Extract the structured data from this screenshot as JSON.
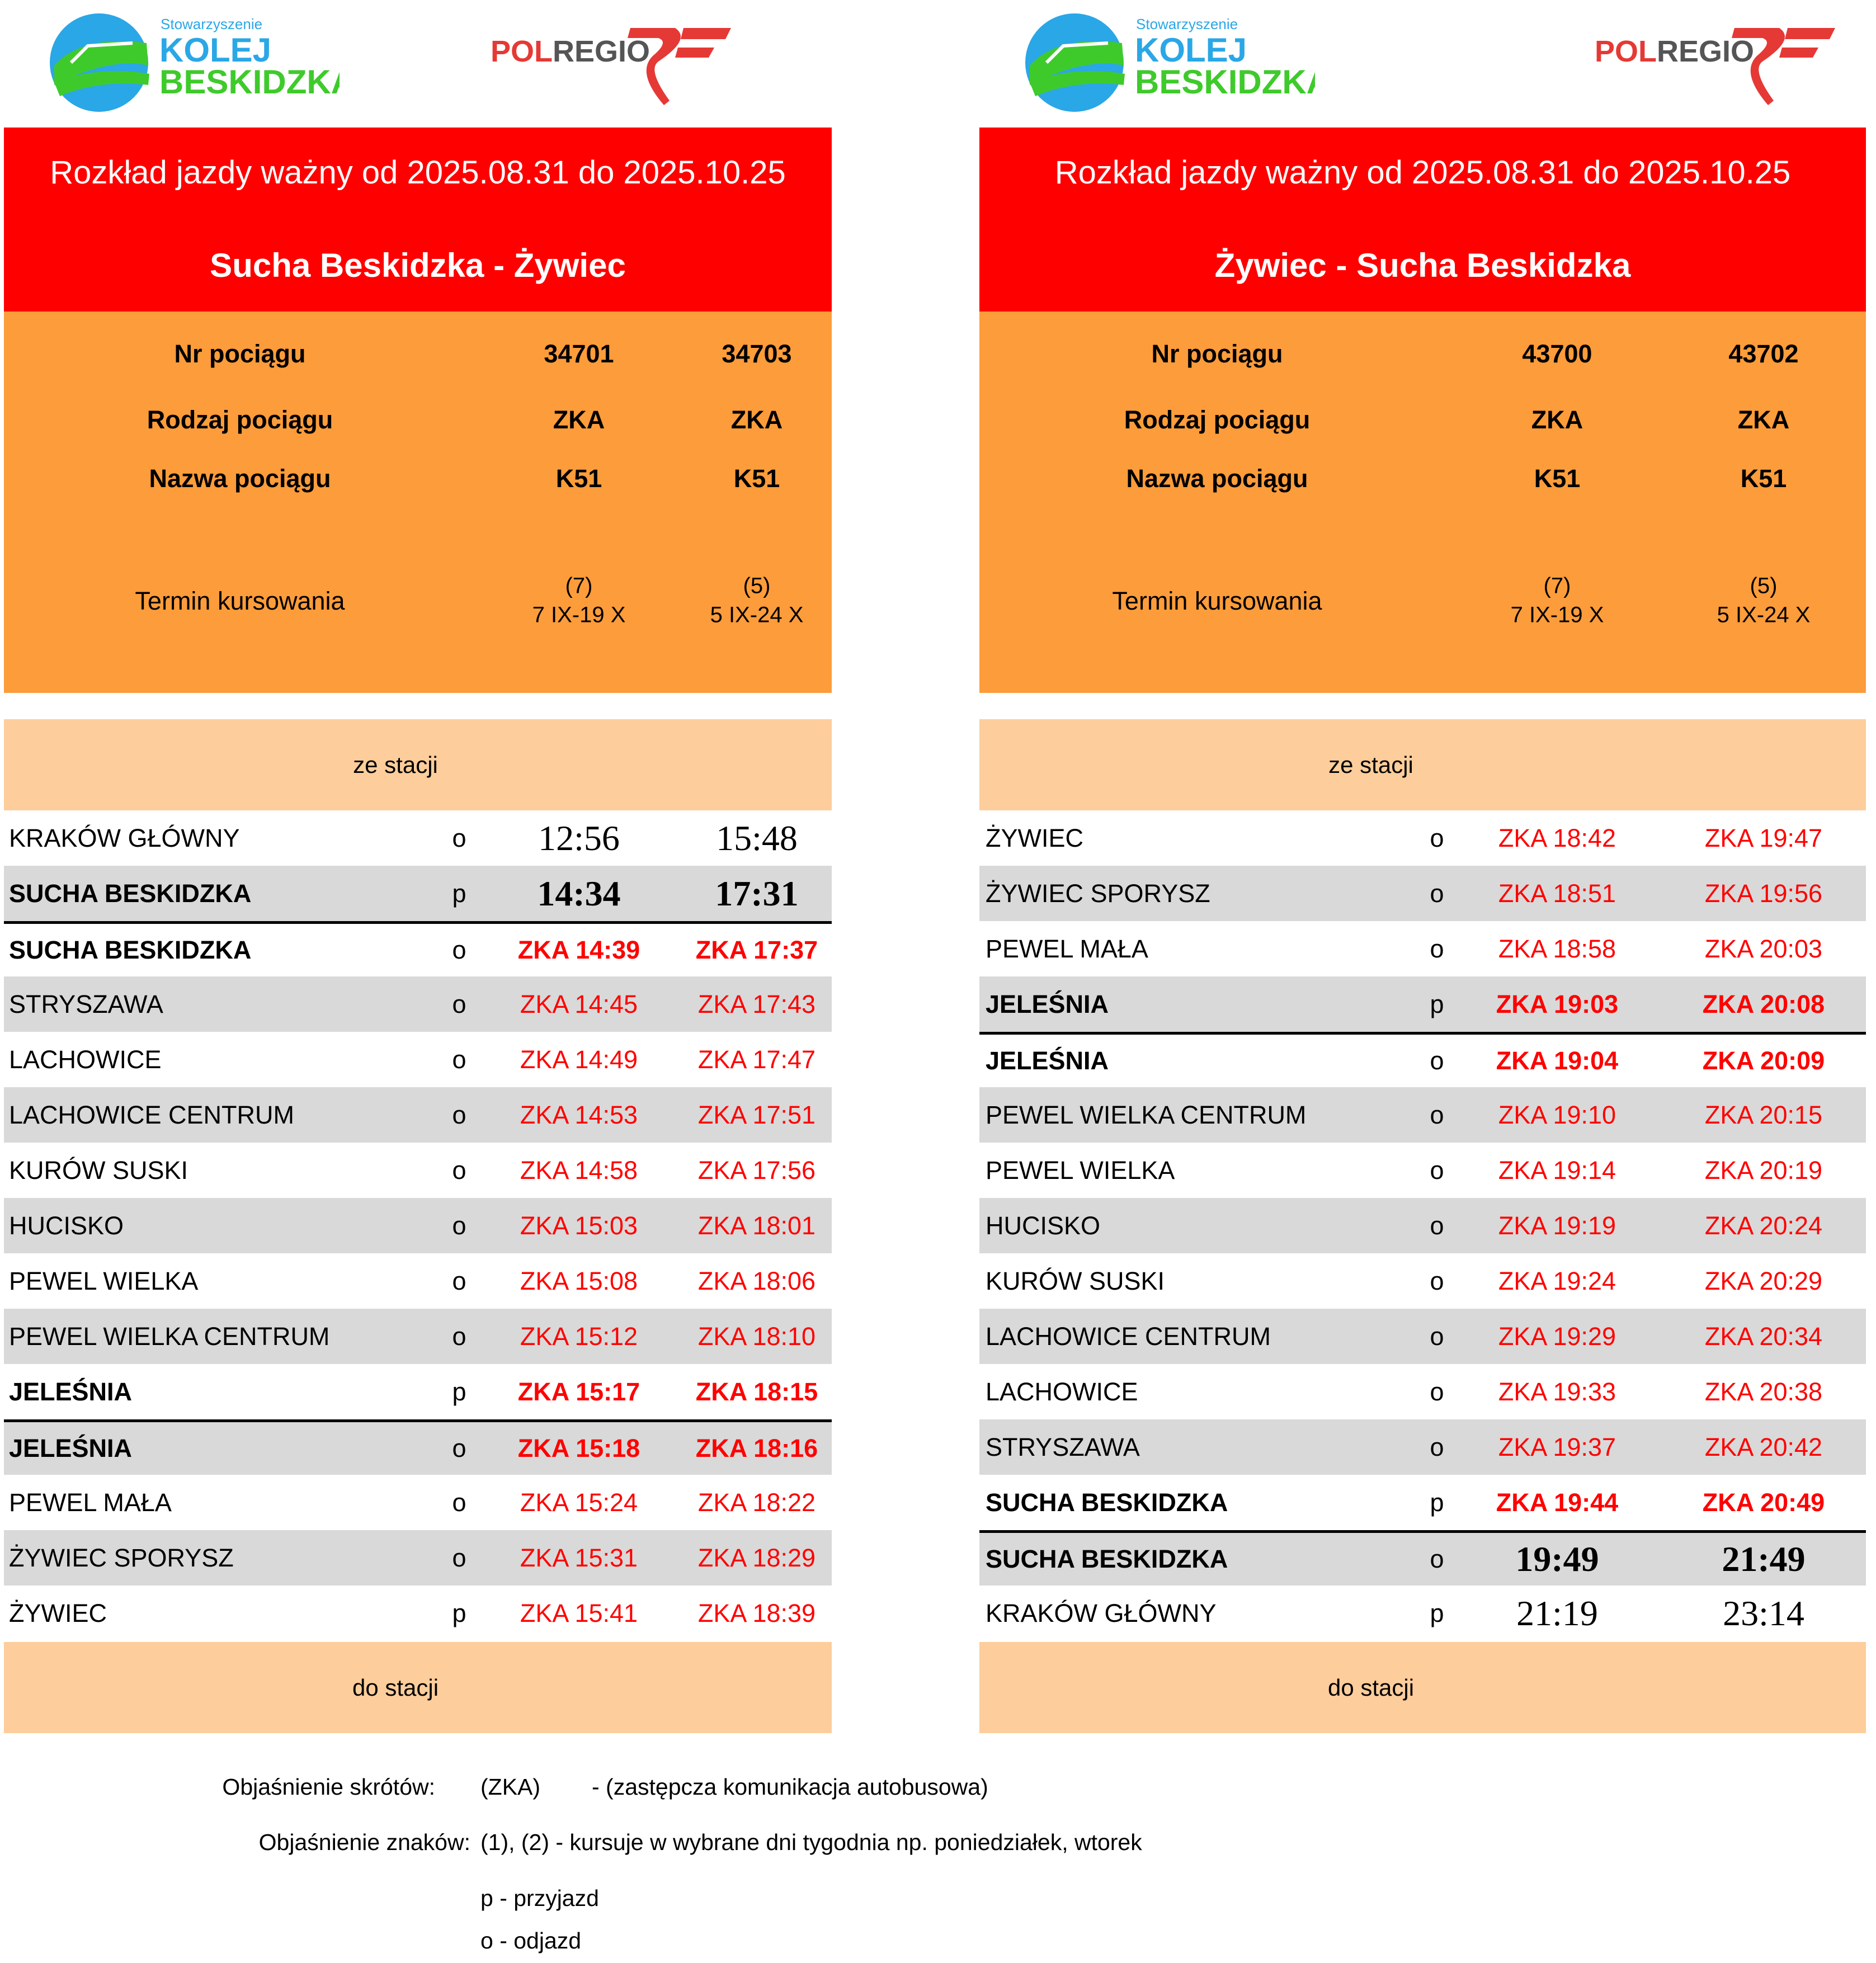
{
  "logos": {
    "kolej": "Stowarzyszenie KOLEJ BESKIDZKA",
    "polregio": "POLREGIO"
  },
  "colors": {
    "header": "#ff0000",
    "orange": "#fd9c3a",
    "band": "#fdcd9b",
    "gray": "#d9d9d9",
    "zka": "#ff0000"
  },
  "panels": [
    {
      "validity": "Rozkład jazdy ważny od 2025.08.31 do 2025.10.25",
      "route": "Sucha Beskidzka - Żywiec",
      "labels": {
        "nr": "Nr pociągu",
        "rodzaj": "Rodzaj pociągu",
        "nazwa": "Nazwa pociągu",
        "termin": "Termin kursowania"
      },
      "trains": [
        {
          "nr": "34701",
          "rodzaj": "ZKA",
          "nazwa": "K51",
          "termin1": "(7)",
          "termin2": "7 IX-19 X"
        },
        {
          "nr": "34703",
          "rodzaj": "ZKA",
          "nazwa": "K51",
          "termin1": "(5)",
          "termin2": "5 IX-24 X"
        }
      ],
      "from_label": "ze stacji",
      "to_label": "do stacji",
      "rows": [
        {
          "station": "KRAKÓW GŁÓWNY",
          "type": "o",
          "times": [
            "12:56",
            "15:48"
          ],
          "rail": true
        },
        {
          "station": "SUCHA BESKIDZKA",
          "type": "p",
          "times": [
            "14:34",
            "17:31"
          ],
          "rail": true,
          "bold": true
        },
        {
          "station": "SUCHA BESKIDZKA",
          "type": "o",
          "times": [
            "ZKA 14:39",
            "ZKA 17:37"
          ],
          "bold": true,
          "line": true
        },
        {
          "station": "STRYSZAWA",
          "type": "o",
          "times": [
            "ZKA 14:45",
            "ZKA 17:43"
          ]
        },
        {
          "station": "LACHOWICE",
          "type": "o",
          "times": [
            "ZKA 14:49",
            "ZKA 17:47"
          ]
        },
        {
          "station": "LACHOWICE CENTRUM",
          "type": "o",
          "times": [
            "ZKA 14:53",
            "ZKA 17:51"
          ]
        },
        {
          "station": "KURÓW SUSKI",
          "type": "o",
          "times": [
            "ZKA 14:58",
            "ZKA 17:56"
          ]
        },
        {
          "station": "HUCISKO",
          "type": "o",
          "times": [
            "ZKA 15:03",
            "ZKA 18:01"
          ]
        },
        {
          "station": "PEWEL WIELKA",
          "type": "o",
          "times": [
            "ZKA 15:08",
            "ZKA 18:06"
          ]
        },
        {
          "station": "PEWEL WIELKA CENTRUM",
          "type": "o",
          "times": [
            "ZKA 15:12",
            "ZKA 18:10"
          ]
        },
        {
          "station": "JELEŚNIA",
          "type": "p",
          "times": [
            "ZKA 15:17",
            "ZKA 18:15"
          ],
          "bold": true
        },
        {
          "station": "JELEŚNIA",
          "type": "o",
          "times": [
            "ZKA 15:18",
            "ZKA 18:16"
          ],
          "bold": true,
          "line": true
        },
        {
          "station": "PEWEL MAŁA",
          "type": "o",
          "times": [
            "ZKA 15:24",
            "ZKA 18:22"
          ]
        },
        {
          "station": "ŻYWIEC SPORYSZ",
          "type": "o",
          "times": [
            "ZKA 15:31",
            "ZKA 18:29"
          ]
        },
        {
          "station": "ŻYWIEC",
          "type": "p",
          "times": [
            "ZKA 15:41",
            "ZKA 18:39"
          ]
        }
      ]
    },
    {
      "validity": "Rozkład jazdy ważny od 2025.08.31 do 2025.10.25",
      "route": "Żywiec - Sucha Beskidzka",
      "labels": {
        "nr": "Nr pociągu",
        "rodzaj": "Rodzaj pociągu",
        "nazwa": "Nazwa pociągu",
        "termin": "Termin kursowania"
      },
      "trains": [
        {
          "nr": "43700",
          "rodzaj": "ZKA",
          "nazwa": "K51",
          "termin1": "(7)",
          "termin2": "7 IX-19 X"
        },
        {
          "nr": "43702",
          "rodzaj": "ZKA",
          "nazwa": "K51",
          "termin1": "(5)",
          "termin2": "5 IX-24 X"
        }
      ],
      "from_label": "ze stacji",
      "to_label": "do stacji",
      "rows": [
        {
          "station": "ŻYWIEC",
          "type": "o",
          "times": [
            "ZKA 18:42",
            "ZKA 19:47"
          ]
        },
        {
          "station": "ŻYWIEC SPORYSZ",
          "type": "o",
          "times": [
            "ZKA 18:51",
            "ZKA 19:56"
          ]
        },
        {
          "station": "PEWEL MAŁA",
          "type": "o",
          "times": [
            "ZKA 18:58",
            "ZKA 20:03"
          ]
        },
        {
          "station": "JELEŚNIA",
          "type": "p",
          "times": [
            "ZKA 19:03",
            "ZKA 20:08"
          ],
          "bold": true
        },
        {
          "station": "JELEŚNIA",
          "type": "o",
          "times": [
            "ZKA 19:04",
            "ZKA 20:09"
          ],
          "bold": true,
          "line": true
        },
        {
          "station": "PEWEL WIELKA CENTRUM",
          "type": "o",
          "times": [
            "ZKA 19:10",
            "ZKA 20:15"
          ]
        },
        {
          "station": "PEWEL WIELKA",
          "type": "o",
          "times": [
            "ZKA 19:14",
            "ZKA 20:19"
          ]
        },
        {
          "station": "HUCISKO",
          "type": "o",
          "times": [
            "ZKA 19:19",
            "ZKA 20:24"
          ]
        },
        {
          "station": "KURÓW SUSKI",
          "type": "o",
          "times": [
            "ZKA 19:24",
            "ZKA 20:29"
          ]
        },
        {
          "station": "LACHOWICE CENTRUM",
          "type": "o",
          "times": [
            "ZKA 19:29",
            "ZKA 20:34"
          ]
        },
        {
          "station": "LACHOWICE",
          "type": "o",
          "times": [
            "ZKA 19:33",
            "ZKA 20:38"
          ]
        },
        {
          "station": "STRYSZAWA",
          "type": "o",
          "times": [
            "ZKA 19:37",
            "ZKA 20:42"
          ]
        },
        {
          "station": "SUCHA BESKIDZKA",
          "type": "p",
          "times": [
            "ZKA 19:44",
            "ZKA 20:49"
          ],
          "bold": true
        },
        {
          "station": "SUCHA BESKIDZKA",
          "type": "o",
          "times": [
            "19:49",
            "21:49"
          ],
          "rail": true,
          "bold": true,
          "line": true
        },
        {
          "station": "KRAKÓW GŁÓWNY",
          "type": "p",
          "times": [
            "21:19",
            "23:14"
          ],
          "rail": true
        }
      ]
    }
  ],
  "legend": {
    "abbr_label": "Objaśnienie skrótów:",
    "abbr_code": "(ZKA)",
    "abbr_text": "- (zastępcza komunikacja autobusowa)",
    "signs_label": "Objaśnienie znaków:",
    "signs_text": "(1), (2) - kursuje w wybrane dni tygodnia np. poniedziałek, wtorek",
    "p_text": "p - przyjazd",
    "o_text": "o - odjazd"
  }
}
